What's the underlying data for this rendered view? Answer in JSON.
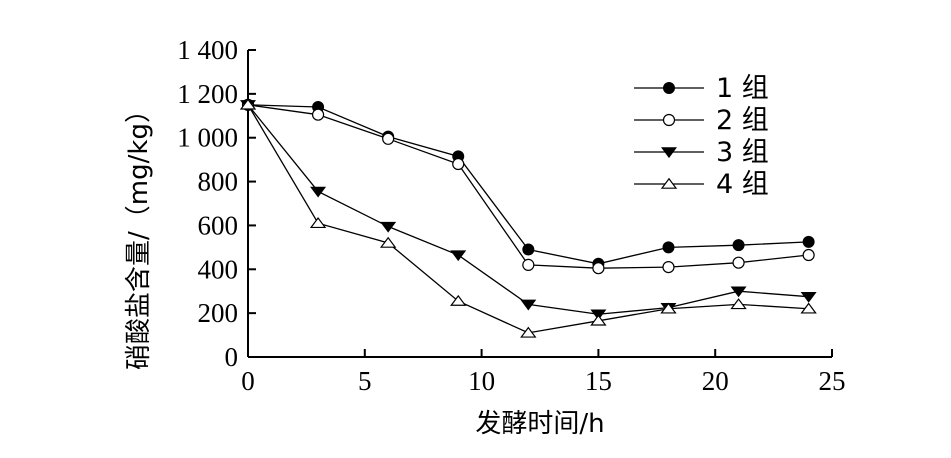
{
  "chart_data": {
    "type": "line",
    "xlabel": "发酵时间/h",
    "ylabel": "硝酸盐含量/（mg/kg）",
    "xlim": [
      0,
      25
    ],
    "ylim": [
      0,
      1400
    ],
    "x_ticks": [
      0,
      5,
      10,
      15,
      20,
      25
    ],
    "x_tick_labels": [
      "0",
      "5",
      "10",
      "15",
      "20",
      "25"
    ],
    "y_ticks": [
      0,
      200,
      400,
      600,
      800,
      1000,
      1200,
      1400
    ],
    "y_tick_labels": [
      "0",
      "200",
      "400",
      "600",
      "800",
      "1 000",
      "1 200",
      "1 400"
    ],
    "grid": false,
    "legend_position": "top-right",
    "x": [
      0,
      3,
      6,
      9,
      12,
      15,
      18,
      21,
      24
    ],
    "series": [
      {
        "name": "1 组",
        "marker": "filled-circle",
        "values": [
          1150,
          1140,
          1005,
          915,
          490,
          425,
          500,
          510,
          525
        ]
      },
      {
        "name": "2 组",
        "marker": "open-circle",
        "values": [
          1150,
          1105,
          995,
          880,
          420,
          405,
          410,
          430,
          465
        ]
      },
      {
        "name": "3 组",
        "marker": "filled-triangle-down",
        "values": [
          1150,
          755,
          595,
          465,
          240,
          195,
          225,
          300,
          275
        ]
      },
      {
        "name": "4 组",
        "marker": "open-triangle-up",
        "values": [
          1150,
          610,
          520,
          255,
          110,
          165,
          220,
          240,
          220
        ]
      }
    ]
  }
}
